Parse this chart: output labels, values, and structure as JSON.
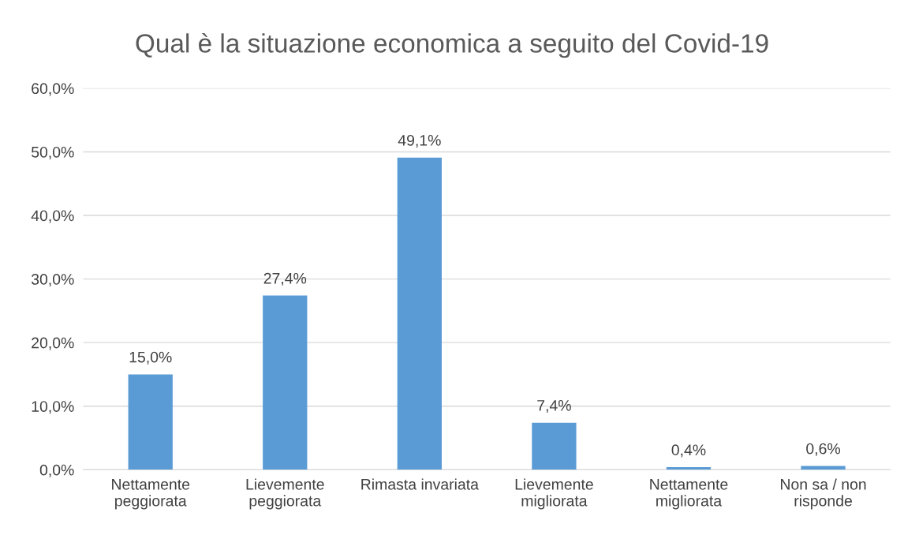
{
  "chart_data": {
    "type": "bar",
    "title": "Qual è la situazione economica a seguito del Covid-19",
    "categories": [
      "Nettamente\npeggiorata",
      "Lievemente\npeggiorata",
      "Rimasta invariata",
      "Lievemente\nmigliorata",
      "Nettamente\nmigliorata",
      "Non sa / non\nrisponde"
    ],
    "values": [
      15.0,
      27.4,
      49.1,
      7.4,
      0.4,
      0.6
    ],
    "value_labels": [
      "15,0%",
      "27,4%",
      "49,1%",
      "7,4%",
      "0,4%",
      "0,6%"
    ],
    "color": "#5b9bd5",
    "ylim": [
      0,
      60
    ],
    "yticks": [
      {
        "value": 0,
        "label": "0,0%"
      },
      {
        "value": 10,
        "label": "10,0%"
      },
      {
        "value": 20,
        "label": "20,0%"
      },
      {
        "value": 30,
        "label": "30,0%"
      },
      {
        "value": 40,
        "label": "40,0%"
      },
      {
        "value": 50,
        "label": "50,0%"
      },
      {
        "value": 60,
        "label": "60,0%"
      }
    ],
    "grid": "y"
  }
}
